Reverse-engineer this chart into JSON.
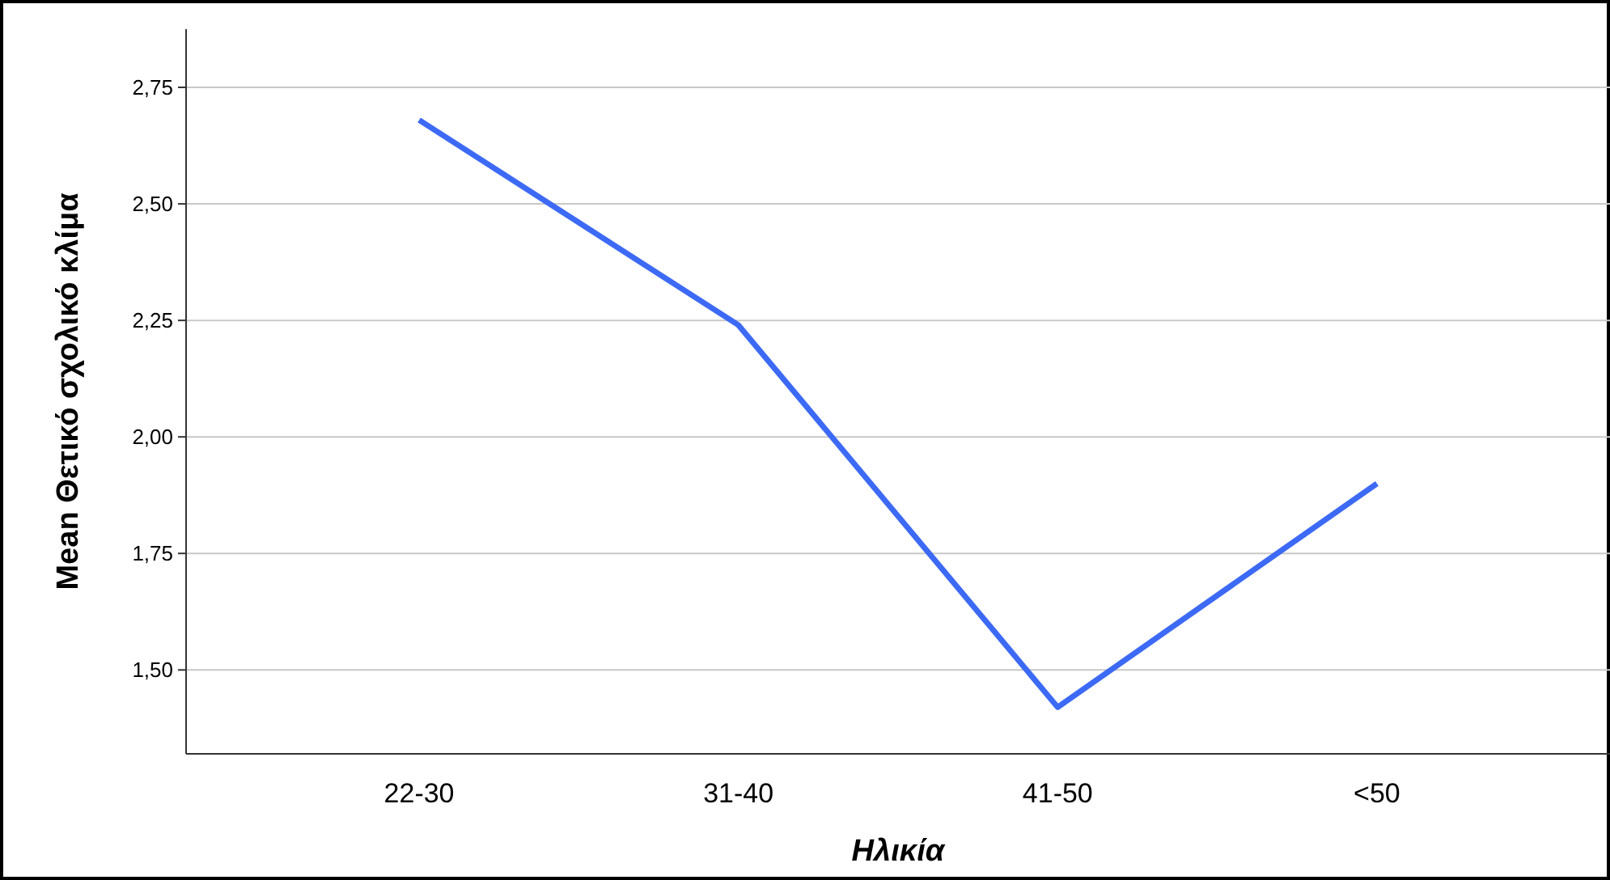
{
  "chart_data": {
    "type": "line",
    "xlabel": "Ηλικία",
    "ylabel": "Mean Θετικό σχολικό κλίμα",
    "categories": [
      "22-30",
      "31-40",
      "41-50",
      "<50"
    ],
    "series": [
      {
        "color": "#3d6af5",
        "values": [
          2.68,
          2.24,
          1.42,
          1.9
        ]
      }
    ],
    "ylim": [
      1.32,
      2.875
    ],
    "yticks": [
      {
        "value": 1.5,
        "label": "1,50"
      },
      {
        "value": 1.75,
        "label": "1,75"
      },
      {
        "value": 2.0,
        "label": "2,00"
      },
      {
        "value": 2.25,
        "label": "2,25"
      },
      {
        "value": 2.5,
        "label": "2,50"
      },
      {
        "value": 2.75,
        "label": "2,75"
      }
    ],
    "grid": "y",
    "marker": "none",
    "line_style": "solid"
  }
}
